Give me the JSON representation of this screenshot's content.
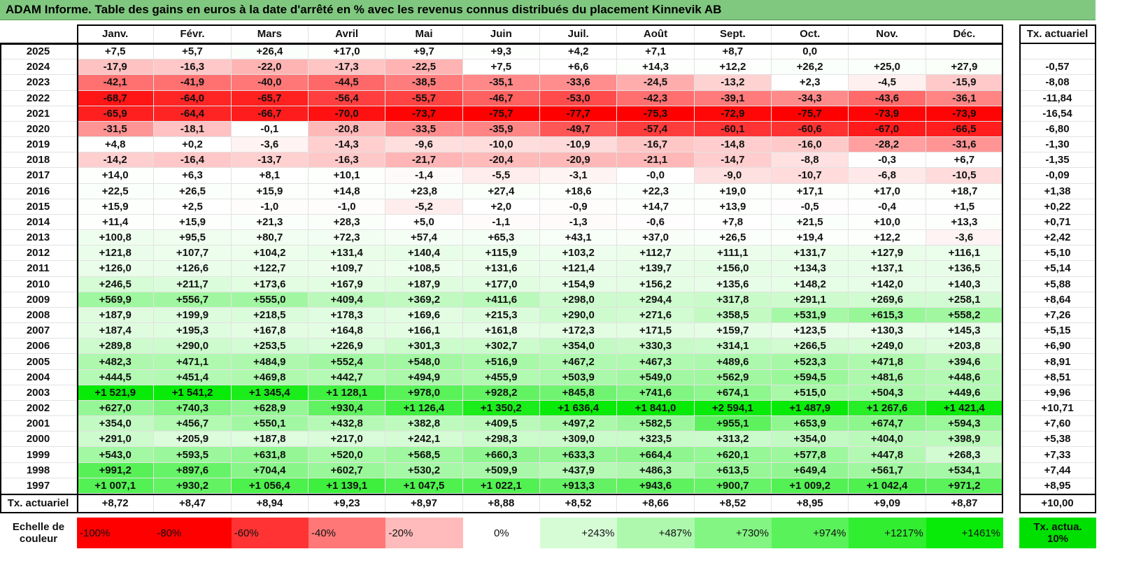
{
  "title": "ADAM Informe. Table des gains en euros à la date d'arrêté en % avec les revenus connus distribués du placement Kinnevik AB",
  "header": {
    "months": [
      "Janv.",
      "Févr.",
      "Mars",
      "Avril",
      "Mai",
      "Juin",
      "Juil.",
      "Août",
      "Sept.",
      "Oct.",
      "Nov.",
      "Déc."
    ],
    "rate": "Tx. actuariel"
  },
  "rows": [
    {
      "year": 2025,
      "values": [
        "+7,5",
        "+5,7",
        "+26,4",
        "+17,0",
        "+9,7",
        "+9,3",
        "+4,2",
        "+7,1",
        "+8,7",
        "0,0",
        null,
        null
      ],
      "rate": null
    },
    {
      "year": 2024,
      "values": [
        "-17,9",
        "-16,3",
        "-22,0",
        "-17,3",
        "-22,5",
        "+7,5",
        "+6,6",
        "+14,3",
        "+12,2",
        "+26,2",
        "+25,0",
        "+27,9"
      ],
      "rate": "-0,57"
    },
    {
      "year": 2023,
      "values": [
        "-42,1",
        "-41,9",
        "-40,0",
        "-44,5",
        "-38,5",
        "-35,1",
        "-33,6",
        "-24,5",
        "-13,2",
        "+2,3",
        "-4,5",
        "-15,9"
      ],
      "rate": "-8,08"
    },
    {
      "year": 2022,
      "values": [
        "-68,7",
        "-64,0",
        "-65,7",
        "-56,4",
        "-55,7",
        "-46,7",
        "-53,0",
        "-42,3",
        "-39,1",
        "-34,3",
        "-43,6",
        "-36,1"
      ],
      "rate": "-11,84"
    },
    {
      "year": 2021,
      "values": [
        "-65,9",
        "-64,4",
        "-66,7",
        "-70,0",
        "-73,7",
        "-75,7",
        "-77,7",
        "-75,3",
        "-72,9",
        "-75,7",
        "-73,9",
        "-73,9"
      ],
      "rate": "-16,54"
    },
    {
      "year": 2020,
      "values": [
        "-31,5",
        "-18,1",
        "-0,1",
        "-20,8",
        "-33,5",
        "-35,9",
        "-49,7",
        "-57,4",
        "-60,1",
        "-60,6",
        "-67,0",
        "-66,5"
      ],
      "rate": "-6,80"
    },
    {
      "year": 2019,
      "values": [
        "+4,8",
        "+0,2",
        "-3,6",
        "-14,3",
        "-9,6",
        "-10,0",
        "-10,9",
        "-16,7",
        "-14,8",
        "-16,0",
        "-28,2",
        "-31,6"
      ],
      "rate": "-1,30"
    },
    {
      "year": 2018,
      "values": [
        "-14,2",
        "-16,4",
        "-13,7",
        "-16,3",
        "-21,7",
        "-20,4",
        "-20,9",
        "-21,1",
        "-14,7",
        "-8,8",
        "-0,3",
        "+6,7"
      ],
      "rate": "-1,35"
    },
    {
      "year": 2017,
      "values": [
        "+14,0",
        "+6,3",
        "+8,1",
        "+10,1",
        "-1,4",
        "-5,5",
        "-3,1",
        "-0,0",
        "-9,0",
        "-10,7",
        "-6,8",
        "-10,5"
      ],
      "rate": "-0,09"
    },
    {
      "year": 2016,
      "values": [
        "+22,5",
        "+26,5",
        "+15,9",
        "+14,8",
        "+23,8",
        "+27,4",
        "+18,6",
        "+22,3",
        "+19,0",
        "+17,1",
        "+17,0",
        "+18,7"
      ],
      "rate": "+1,38"
    },
    {
      "year": 2015,
      "values": [
        "+15,9",
        "+2,5",
        "-1,0",
        "-1,0",
        "-5,2",
        "+2,0",
        "-0,9",
        "+14,7",
        "+13,9",
        "-0,5",
        "-0,4",
        "+1,5"
      ],
      "rate": "+0,22"
    },
    {
      "year": 2014,
      "values": [
        "+11,4",
        "+15,9",
        "+21,3",
        "+28,3",
        "+5,0",
        "-1,1",
        "-1,3",
        "-0,6",
        "+7,8",
        "+21,5",
        "+10,0",
        "+13,3"
      ],
      "rate": "+0,71"
    },
    {
      "year": 2013,
      "values": [
        "+100,8",
        "+95,5",
        "+80,7",
        "+72,3",
        "+57,4",
        "+65,3",
        "+43,1",
        "+37,0",
        "+26,5",
        "+19,4",
        "+12,2",
        "-3,6"
      ],
      "rate": "+2,42"
    },
    {
      "year": 2012,
      "values": [
        "+121,8",
        "+107,7",
        "+104,2",
        "+131,4",
        "+140,4",
        "+115,9",
        "+103,2",
        "+112,7",
        "+111,1",
        "+131,7",
        "+127,9",
        "+116,1"
      ],
      "rate": "+5,10"
    },
    {
      "year": 2011,
      "values": [
        "+126,0",
        "+126,6",
        "+122,7",
        "+109,7",
        "+108,5",
        "+131,6",
        "+121,4",
        "+139,7",
        "+156,0",
        "+134,3",
        "+137,1",
        "+136,5"
      ],
      "rate": "+5,14"
    },
    {
      "year": 2010,
      "values": [
        "+246,5",
        "+211,7",
        "+173,6",
        "+167,9",
        "+187,9",
        "+177,0",
        "+154,9",
        "+156,2",
        "+135,6",
        "+148,2",
        "+142,0",
        "+140,3"
      ],
      "rate": "+5,88"
    },
    {
      "year": 2009,
      "values": [
        "+569,9",
        "+556,7",
        "+555,0",
        "+409,4",
        "+369,2",
        "+411,6",
        "+298,0",
        "+294,4",
        "+317,8",
        "+291,1",
        "+269,6",
        "+258,1"
      ],
      "rate": "+8,64"
    },
    {
      "year": 2008,
      "values": [
        "+187,9",
        "+199,9",
        "+218,5",
        "+178,3",
        "+169,6",
        "+215,3",
        "+290,0",
        "+271,6",
        "+358,5",
        "+531,9",
        "+615,3",
        "+558,2"
      ],
      "rate": "+7,26"
    },
    {
      "year": 2007,
      "values": [
        "+187,4",
        "+195,3",
        "+167,8",
        "+164,8",
        "+166,1",
        "+161,8",
        "+172,3",
        "+171,5",
        "+159,7",
        "+123,5",
        "+130,3",
        "+145,3"
      ],
      "rate": "+5,15"
    },
    {
      "year": 2006,
      "values": [
        "+289,8",
        "+290,0",
        "+253,5",
        "+226,9",
        "+301,3",
        "+302,7",
        "+354,0",
        "+330,3",
        "+314,1",
        "+266,5",
        "+249,0",
        "+203,8"
      ],
      "rate": "+6,90"
    },
    {
      "year": 2005,
      "values": [
        "+482,3",
        "+471,1",
        "+484,9",
        "+552,4",
        "+548,0",
        "+516,9",
        "+467,2",
        "+467,3",
        "+489,6",
        "+523,3",
        "+471,8",
        "+394,6"
      ],
      "rate": "+8,91"
    },
    {
      "year": 2004,
      "values": [
        "+444,5",
        "+451,4",
        "+469,8",
        "+442,7",
        "+494,9",
        "+455,9",
        "+503,9",
        "+549,0",
        "+562,9",
        "+594,5",
        "+481,6",
        "+448,6"
      ],
      "rate": "+8,51"
    },
    {
      "year": 2003,
      "values": [
        "+1 521,9",
        "+1 541,2",
        "+1 345,4",
        "+1 128,1",
        "+978,0",
        "+928,2",
        "+845,8",
        "+741,6",
        "+674,1",
        "+515,0",
        "+504,3",
        "+449,6"
      ],
      "rate": "+9,96"
    },
    {
      "year": 2002,
      "values": [
        "+627,0",
        "+740,3",
        "+628,9",
        "+930,4",
        "+1 126,4",
        "+1 350,2",
        "+1 636,4",
        "+1 841,0",
        "+2 594,1",
        "+1 487,9",
        "+1 267,6",
        "+1 421,4"
      ],
      "rate": "+10,71"
    },
    {
      "year": 2001,
      "values": [
        "+354,0",
        "+456,7",
        "+550,1",
        "+432,8",
        "+382,8",
        "+409,5",
        "+497,2",
        "+582,5",
        "+955,1",
        "+653,9",
        "+674,7",
        "+594,3"
      ],
      "rate": "+7,60"
    },
    {
      "year": 2000,
      "values": [
        "+291,0",
        "+205,9",
        "+187,8",
        "+217,0",
        "+242,1",
        "+298,3",
        "+309,0",
        "+323,5",
        "+313,2",
        "+354,0",
        "+404,0",
        "+398,9"
      ],
      "rate": "+5,38"
    },
    {
      "year": 1999,
      "values": [
        "+543,0",
        "+593,5",
        "+631,8",
        "+520,0",
        "+568,5",
        "+660,3",
        "+633,3",
        "+664,4",
        "+620,1",
        "+577,8",
        "+447,8",
        "+268,3"
      ],
      "rate": "+7,33"
    },
    {
      "year": 1998,
      "values": [
        "+991,2",
        "+897,6",
        "+704,4",
        "+602,7",
        "+530,2",
        "+509,9",
        "+437,9",
        "+486,3",
        "+613,5",
        "+649,4",
        "+561,7",
        "+534,1"
      ],
      "rate": "+7,44"
    },
    {
      "year": 1997,
      "values": [
        "+1 007,1",
        "+930,2",
        "+1 056,4",
        "+1 139,1",
        "+1 047,5",
        "+1 022,1",
        "+913,3",
        "+943,6",
        "+900,7",
        "+1 009,2",
        "+1 042,4",
        "+971,2"
      ],
      "rate": "+8,95"
    }
  ],
  "footer": {
    "label": "Tx. actuariel",
    "values": [
      "+8,72",
      "+8,47",
      "+8,94",
      "+9,23",
      "+8,97",
      "+8,88",
      "+8,52",
      "+8,66",
      "+8,52",
      "+8,95",
      "+9,09",
      "+8,87"
    ],
    "rate": "+10,00"
  },
  "legend": {
    "label": "Echelle de couleur",
    "steps": [
      "-100%",
      "-80%",
      "-60%",
      "-40%",
      "-20%",
      "0%",
      "+243%",
      "+487%",
      "+730%",
      "+974%",
      "+1217%",
      "+1461%"
    ],
    "rate": "Tx. actua. 10%"
  }
}
